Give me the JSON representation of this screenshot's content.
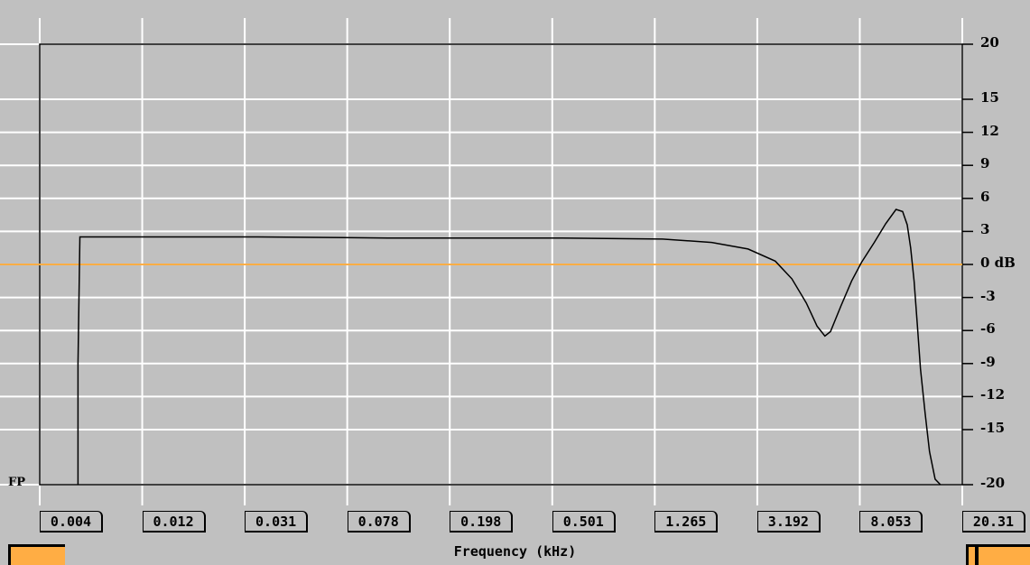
{
  "chart_data": {
    "type": "line",
    "ylabel": "dB",
    "xlabel": "Frequency (kHz)",
    "corner_label": "FP",
    "y_ticks": [
      {
        "value": 20,
        "label": "20"
      },
      {
        "value": 15,
        "label": "15"
      },
      {
        "value": 12,
        "label": "12"
      },
      {
        "value": 9,
        "label": "9"
      },
      {
        "value": 6,
        "label": "6"
      },
      {
        "value": 3,
        "label": "3"
      },
      {
        "value": 0,
        "label": "0 dB"
      },
      {
        "value": -3,
        "label": "-3"
      },
      {
        "value": -6,
        "label": "-6"
      },
      {
        "value": -9,
        "label": "-9"
      },
      {
        "value": -12,
        "label": "-12"
      },
      {
        "value": -15,
        "label": "-15"
      },
      {
        "value": -20,
        "label": "-20"
      }
    ],
    "x_ticks": [
      "0.004",
      "0.012",
      "0.031",
      "0.078",
      "0.198",
      "0.501",
      "1.265",
      "3.192",
      "8.053",
      "20.31"
    ],
    "xlim_khz": [
      0.004,
      20.31
    ],
    "ylim_db": [
      -20,
      20
    ],
    "x_scale": "log",
    "reference_line_db": 0,
    "series": [
      {
        "x_khz": [
          0.0057,
          0.0057,
          0.0058,
          0.0058,
          0.03,
          0.1,
          0.5,
          1.27,
          2.0,
          2.8,
          3.6,
          4.2,
          4.8,
          5.3,
          5.7,
          6.0,
          6.6,
          7.3,
          8.0,
          9.0,
          10.0,
          11.0,
          11.7,
          12.2,
          12.6,
          13.0,
          13.4,
          13.8,
          14.4,
          15.0,
          15.8,
          16.6
        ],
        "y_db": [
          -20,
          -9,
          2.5,
          2.5,
          2.5,
          2.4,
          2.4,
          2.3,
          2.0,
          1.4,
          0.3,
          -1.3,
          -3.5,
          -5.6,
          -6.5,
          -6.1,
          -3.8,
          -1.5,
          0.2,
          2.0,
          3.7,
          5.0,
          4.8,
          3.6,
          1.5,
          -1.5,
          -5.5,
          -9.5,
          -13.5,
          -17.0,
          -19.5,
          -20
        ]
      }
    ],
    "colors": {
      "background": "#c0c0c0",
      "grid": "#ffffff",
      "curve": "#000000",
      "reference_line": "#ffad44",
      "handle": "#ffad44"
    }
  }
}
